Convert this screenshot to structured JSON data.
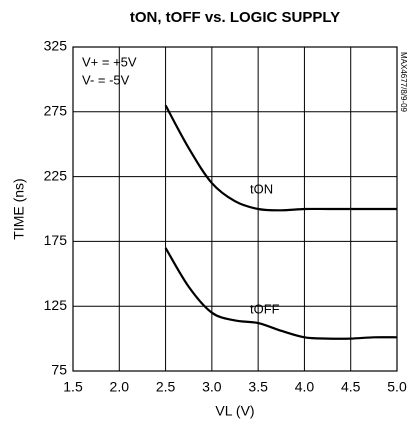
{
  "chart_data": {
    "type": "line",
    "title": "tON, tOFF vs. LOGIC SUPPLY",
    "xlabel": "VL (V)",
    "ylabel": "TIME (ns)",
    "annotations": [
      "V+ = +5V",
      "V- = -5V",
      "MAX4677/8/9-09"
    ],
    "x": [
      2.5,
      2.75,
      3.0,
      3.25,
      3.5,
      3.75,
      4.0,
      4.25,
      4.5,
      4.75,
      5.0
    ],
    "series": [
      {
        "name": "tON",
        "color": "#000000",
        "values": [
          280,
          247,
          220,
          206,
          200,
          199,
          200,
          200,
          200,
          200,
          200
        ]
      },
      {
        "name": "tOFF",
        "color": "#000000",
        "values": [
          170,
          140,
          120,
          114,
          112,
          106,
          101,
          100,
          100,
          101,
          101
        ]
      }
    ],
    "xlim": [
      1.5,
      5.0
    ],
    "xticks": [
      1.5,
      {
        "value": 2,
        "label": "2.0"
      },
      2.5,
      {
        "value": 3,
        "label": "3.0"
      },
      3.5,
      {
        "value": 4,
        "label": "4.0"
      },
      4.5,
      {
        "value": 5,
        "label": "5.0"
      }
    ],
    "ylim": [
      75,
      325
    ],
    "yticks": [
      75,
      125,
      175,
      225,
      275,
      325
    ],
    "grid": true
  }
}
